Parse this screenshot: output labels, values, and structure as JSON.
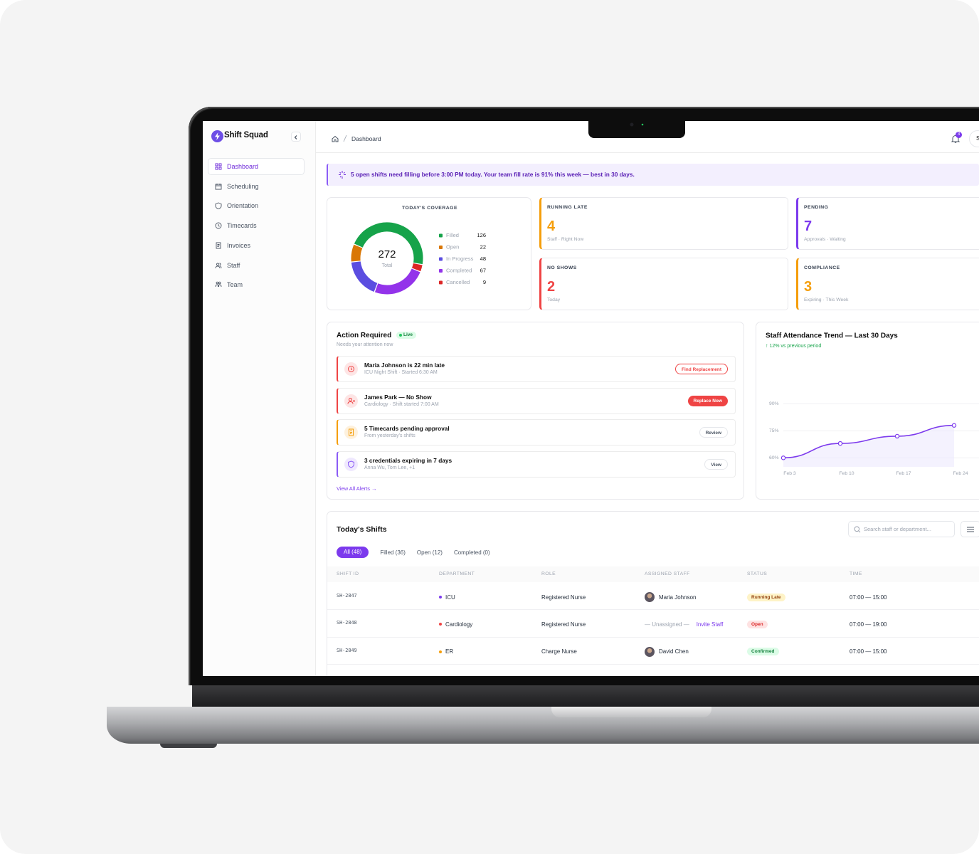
{
  "sidebar": {
    "brand": "Shift Squad",
    "nav": [
      "Dashboard",
      "Scheduling",
      "Orientation",
      "Timecards",
      "Invoices",
      "Staff",
      "Team"
    ]
  },
  "header": {
    "breadcrumb": "Dashboard",
    "notifications": 3,
    "avatar": "S"
  },
  "banner": "5 open shifts need filling before 3:00 PM today. Your team fill rate is 91% this week — best in 30 days.",
  "chart_data": [
    {
      "type": "donut",
      "title": "TODAY'S COVERAGE",
      "total": 272,
      "total_label": "Total",
      "categories": [
        "Filled",
        "Open",
        "In Progress",
        "Completed",
        "Cancelled"
      ],
      "values": [
        126,
        22,
        48,
        67,
        9
      ],
      "colors": [
        "#16a34a",
        "#d97706",
        "#5b4de0",
        "#9333ea",
        "#dc2626"
      ]
    },
    {
      "type": "line",
      "title": "Staff Attendance Trend — Last 30 Days",
      "subtitle": "↑ 12% vs previous period",
      "categories": [
        "Feb 3",
        "Feb 10",
        "Feb 17",
        "Feb 24"
      ],
      "values": [
        60,
        68,
        72,
        78
      ],
      "color": "#7c3aed",
      "ylim": [
        55,
        100
      ],
      "yticks": [
        {
          "value": 60,
          "label": "60%"
        },
        {
          "value": 75,
          "label": "75%"
        },
        {
          "value": 90,
          "label": "90%"
        }
      ],
      "grid": true
    }
  ],
  "stats": [
    {
      "label": "RUNNING LATE",
      "value": 4,
      "note": "Staff · Right Now",
      "color": "#f59e0b"
    },
    {
      "label": "PENDING",
      "value": 7,
      "note": "Approvals · Waiting",
      "color": "#7c3aed"
    },
    {
      "label": "NO SHOWS",
      "value": 2,
      "note": "Today",
      "color": "#ef4444"
    },
    {
      "label": "COMPLIANCE",
      "value": 3,
      "note": "Expiring · This Week",
      "color": "#f59e0b"
    }
  ],
  "actions": {
    "title": "Action Required",
    "badge": "Live",
    "subtitle": "Needs your attention now",
    "items": [
      {
        "title": "Maria Johnson is 22 min late",
        "detail": "ICU Night Shift · Started 6:30 AM",
        "button": "Find Replacement",
        "color": "#ef4444"
      },
      {
        "title": "James Park — No Show",
        "detail": "Cardiology · Shift started 7:00 AM",
        "button": "Replace Now",
        "color": "#ef4444"
      },
      {
        "title": "5 Timecards pending approval",
        "detail": "From yesterday's shifts",
        "button": "Review",
        "color": "#f59e0b"
      },
      {
        "title": "3 credentials expiring in 7 days",
        "detail": "Anna Wu, Tom Lee, +1",
        "button": "View",
        "color": "#8b5cf6"
      }
    ],
    "link": "View All Alerts →"
  },
  "shifts": {
    "title": "Today's Shifts",
    "search": "Search staff or department...",
    "tabs": [
      "All (48)",
      "Filled (36)",
      "Open (12)",
      "Completed (0)"
    ],
    "columns": [
      "SHIFT ID",
      "DEPARTMENT",
      "ROLE",
      "ASSIGNED STAFF",
      "STATUS",
      "TIME"
    ],
    "rows": [
      {
        "id": "SH-2847",
        "department": "ICU",
        "dept_color": "#7c3aed",
        "role": "Registered Nurse",
        "staff": "Maria Johnson",
        "status": "Running Late",
        "status_color": "#92400e",
        "status_bg": "#fef3c7",
        "time": "07:00 — 15:00"
      },
      {
        "id": "SH-2848",
        "department": "Cardiology",
        "dept_color": "#ef4444",
        "role": "Registered Nurse",
        "staff": "— Unassigned —",
        "invite": "Invite Staff",
        "status": "Open",
        "status_color": "#dc2626",
        "status_bg": "#fee2e2",
        "time": "07:00 — 19:00"
      },
      {
        "id": "SH-2849",
        "department": "ER",
        "dept_color": "#f59e0b",
        "role": "Charge Nurse",
        "staff": "David Chen",
        "status": "Confirmed",
        "status_color": "#15803d",
        "status_bg": "#dcfce7",
        "time": "07:00 — 15:00"
      }
    ]
  }
}
